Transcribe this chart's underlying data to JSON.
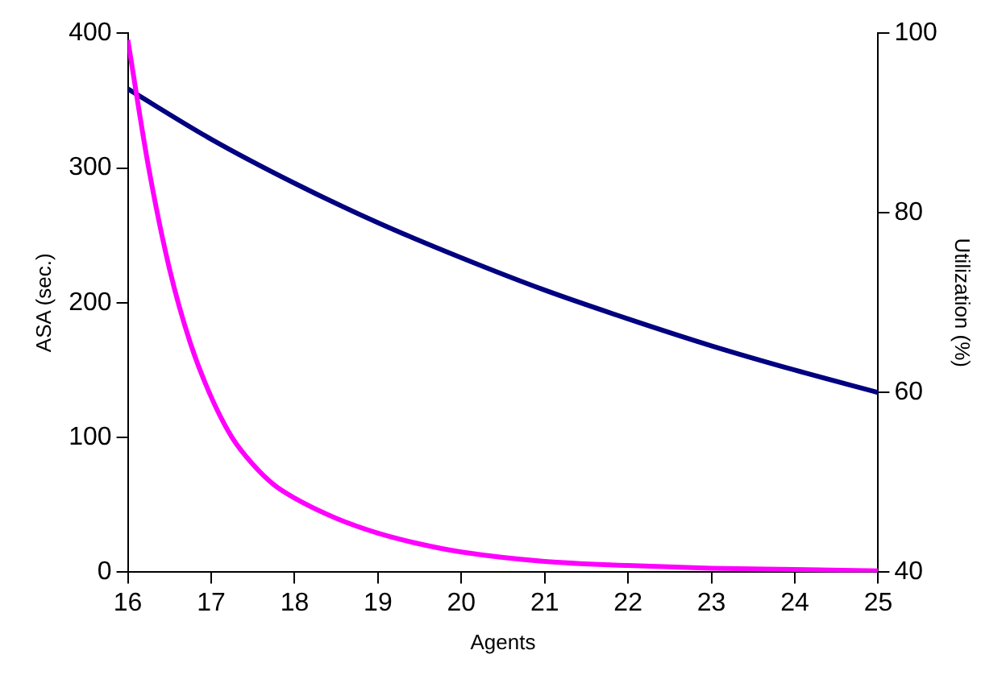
{
  "chart_data": {
    "type": "line",
    "xlabel": "Agents",
    "ylabel": "ASA (sec.)",
    "y2label": "Utilization (%)",
    "xlim": [
      16,
      25
    ],
    "xticks": [
      16,
      17,
      18,
      19,
      20,
      21,
      22,
      23,
      24,
      25
    ],
    "ylim": [
      0,
      400
    ],
    "yticks": [
      0,
      100,
      200,
      300,
      400
    ],
    "y2lim": [
      40,
      100
    ],
    "y2ticks": [
      40,
      60,
      80,
      100
    ],
    "grid": false,
    "legend": false,
    "marker": "none",
    "line_style": "solid",
    "series": [
      {
        "color": "#ff00ff",
        "x": [
          16,
          16.25,
          16.5,
          16.75,
          17,
          17.25,
          17.5,
          17.75,
          18,
          18.5,
          19,
          19.5,
          20,
          21,
          22,
          23,
          24,
          25
        ],
        "values": [
          395,
          300,
          225,
          170,
          130,
          100,
          80,
          65,
          55,
          40,
          29,
          21,
          15,
          8,
          5,
          3,
          2,
          1
        ]
      },
      {
        "color": "#000080",
        "axis": "y2",
        "x": [
          16,
          17,
          18,
          19,
          20,
          21,
          22,
          23,
          24,
          25
        ],
        "values": [
          93.8,
          88.2,
          83.3,
          78.9,
          75,
          71.4,
          68.2,
          65.2,
          62.5,
          60
        ]
      }
    ]
  }
}
